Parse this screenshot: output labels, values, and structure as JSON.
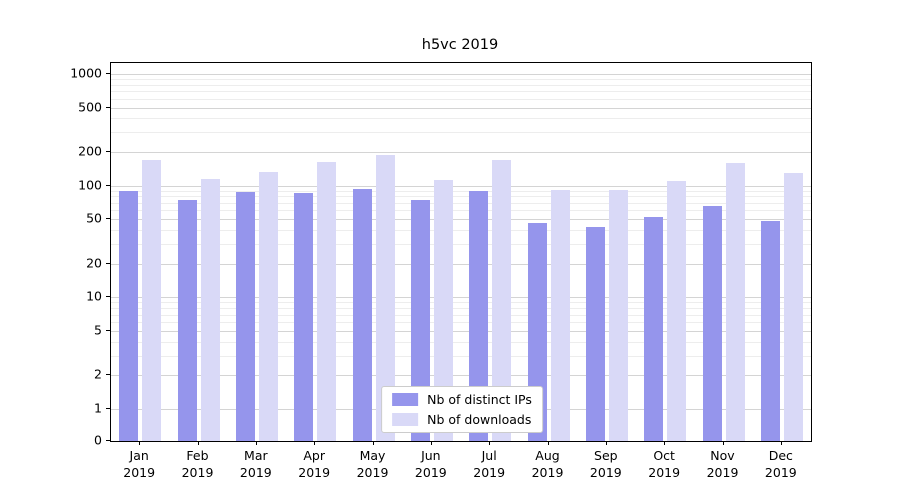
{
  "chart_data": {
    "type": "bar",
    "title": "h5vc 2019",
    "categories": [
      "Jan\n2019",
      "Feb\n2019",
      "Mar\n2019",
      "Apr\n2019",
      "May\n2019",
      "Jun\n2019",
      "Jul\n2019",
      "Aug\n2019",
      "Sep\n2019",
      "Oct\n2019",
      "Nov\n2019",
      "Dec\n2019"
    ],
    "series": [
      {
        "name": "Nb of distinct IPs",
        "color": "#9595ec",
        "values": [
          90,
          75,
          88,
          86,
          93,
          75,
          90,
          46,
          43,
          52,
          66,
          48
        ]
      },
      {
        "name": "Nb of downloads",
        "color": "#d9d9f7",
        "values": [
          170,
          115,
          133,
          162,
          188,
          113,
          170,
          91,
          92,
          110,
          160,
          130
        ]
      }
    ],
    "yscale": "symlog",
    "yticks": [
      0,
      1,
      2,
      5,
      10,
      20,
      50,
      100,
      200,
      500,
      1000
    ],
    "ylim": [
      0,
      1260
    ],
    "grid": true,
    "legend_position": "lower center",
    "colors": {
      "grid_major": "#d4d4d4",
      "grid_minor": "#ededed",
      "spine": "#000000",
      "background": "#ffffff"
    }
  }
}
